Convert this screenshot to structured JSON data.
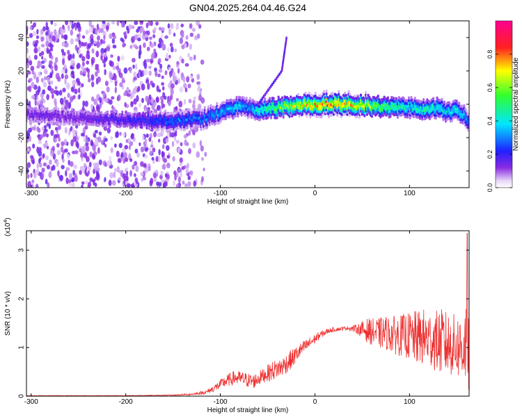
{
  "figure": {
    "title": "GN04.2025.264.04.46.G24"
  },
  "chart_data": [
    {
      "type": "heatmap",
      "xlabel": "Height of straight line (km)",
      "ylabel": "Frequency (Hz)",
      "xlim": [
        -305,
        163
      ],
      "ylim": [
        -50,
        50
      ],
      "xticks": [
        -300,
        -200,
        -100,
        0,
        100
      ],
      "yticks": [
        -40,
        -20,
        0,
        20,
        40
      ],
      "xtick_labels": [
        "-300",
        "-200",
        "-100",
        "0",
        "100"
      ],
      "ytick_labels": [
        "-40",
        "-20",
        "0",
        "20",
        "40"
      ],
      "colorbar": {
        "label": "Normalized spectral amplitude",
        "range": [
          0.0,
          1.0
        ],
        "ticks": [
          0.0,
          0.2,
          0.4,
          0.6,
          0.8
        ],
        "tick_labels": [
          "0.0",
          "0.2",
          "0.4",
          "0.6",
          "0.8"
        ],
        "colormap": "rainbow (white-violet-blue-cyan-green-yellow-red-magenta)"
      },
      "ridge": {
        "x": [
          -305,
          -250,
          -200,
          -170,
          -150,
          -120,
          -100,
          -90,
          -80,
          -70,
          -60,
          -50,
          -40,
          -20,
          0,
          20,
          40,
          60,
          80,
          100,
          120,
          130,
          140,
          150,
          160,
          163
        ],
        "frequency": [
          -6,
          -8,
          -9,
          -10,
          -10,
          -9,
          -5,
          -3,
          -1,
          -2,
          -3,
          -3,
          -2,
          -1,
          0,
          0,
          0,
          -1,
          -2,
          -2,
          -3,
          -2,
          -5,
          -4,
          -8,
          -12
        ],
        "amplitude": [
          0.15,
          0.15,
          0.2,
          0.25,
          0.3,
          0.3,
          0.35,
          0.4,
          0.4,
          0.3,
          0.45,
          0.5,
          0.6,
          0.7,
          0.8,
          0.85,
          0.75,
          0.65,
          0.55,
          0.45,
          0.5,
          0.45,
          0.4,
          0.45,
          0.35,
          0.3
        ]
      },
      "noise_region_x": [
        -305,
        -125
      ],
      "side_branch": {
        "x": [
          -60,
          -35,
          -30
        ],
        "frequency": [
          0,
          20,
          40
        ]
      }
    },
    {
      "type": "line",
      "xlabel": "Height of straight line (km)",
      "ylabel": "SNR (10 * v/v)",
      "y_multiplier": "(x10",
      "y_multiplier_exp": "4",
      "y_multiplier_close": ")",
      "xlim": [
        -305,
        163
      ],
      "ylim": [
        0,
        3.4
      ],
      "xticks": [
        -300,
        -200,
        -100,
        0,
        100
      ],
      "yticks": [
        0,
        1,
        2,
        3
      ],
      "xtick_labels": [
        "-300",
        "-200",
        "-100",
        "0",
        "100"
      ],
      "ytick_labels": [
        "0",
        "1",
        "2",
        "3"
      ],
      "series": [
        {
          "color": "#ee3030",
          "x": [
            -305,
            -250,
            -200,
            -150,
            -130,
            -115,
            -105,
            -95,
            -85,
            -75,
            -65,
            -55,
            -45,
            -35,
            -25,
            -15,
            -5,
            5,
            15,
            25,
            35,
            45,
            55,
            65,
            75,
            85,
            95,
            105,
            115,
            125,
            135,
            145,
            155,
            160,
            163
          ],
          "y_mean": [
            0.01,
            0.01,
            0.01,
            0.02,
            0.04,
            0.08,
            0.18,
            0.3,
            0.38,
            0.35,
            0.3,
            0.42,
            0.52,
            0.6,
            0.75,
            0.95,
            1.1,
            1.25,
            1.35,
            1.38,
            1.4,
            1.38,
            1.35,
            1.3,
            1.3,
            1.25,
            1.25,
            1.2,
            1.2,
            1.15,
            1.1,
            1.05,
            1.0,
            1.1,
            1.0
          ],
          "y_spread": [
            0.005,
            0.005,
            0.005,
            0.01,
            0.02,
            0.04,
            0.08,
            0.12,
            0.15,
            0.15,
            0.15,
            0.15,
            0.2,
            0.2,
            0.2,
            0.15,
            0.12,
            0.08,
            0.05,
            0.04,
            0.04,
            0.1,
            0.25,
            0.3,
            0.35,
            0.4,
            0.45,
            0.55,
            0.6,
            0.6,
            0.7,
            0.65,
            0.7,
            0.9,
            1.0
          ],
          "y_peak": {
            "x": 161,
            "y": 3.35
          }
        }
      ]
    }
  ]
}
